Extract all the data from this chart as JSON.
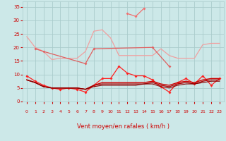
{
  "x": [
    0,
    1,
    2,
    3,
    4,
    5,
    6,
    7,
    8,
    9,
    10,
    11,
    12,
    13,
    14,
    15,
    16,
    17,
    18,
    19,
    20,
    21,
    22,
    23
  ],
  "series": [
    {
      "y": [
        24,
        20,
        18.5,
        15.5,
        16,
        16,
        16,
        18.5,
        26,
        26.5,
        23.5,
        17,
        17,
        17,
        17,
        17,
        19.5,
        17,
        16,
        16,
        16,
        21,
        21.5,
        21.5
      ],
      "color": "#f0a0a0",
      "lw": 0.9,
      "marker": null
    },
    {
      "y": [
        null,
        null,
        null,
        null,
        null,
        null,
        null,
        null,
        null,
        null,
        null,
        null,
        32.5,
        31.5,
        34.5,
        null,
        null,
        null,
        null,
        null,
        null,
        null,
        null,
        null
      ],
      "color": "#f07070",
      "lw": 0.9,
      "marker": "D"
    },
    {
      "y": [
        null,
        19.5,
        18.5,
        null,
        null,
        null,
        null,
        14,
        19.5,
        null,
        null,
        null,
        null,
        null,
        null,
        20,
        null,
        13,
        null,
        null,
        null,
        null,
        null,
        null
      ],
      "color": "#e06060",
      "lw": 0.9,
      "marker": "D"
    },
    {
      "y": [
        9.5,
        7.5,
        6,
        5,
        4.5,
        5,
        4.5,
        3.5,
        6,
        8.5,
        8.5,
        13,
        10.5,
        9.5,
        9.5,
        8,
        5.5,
        3.5,
        7,
        8.5,
        6.5,
        9.5,
        6,
        8.5
      ],
      "color": "#ff2020",
      "lw": 0.9,
      "marker": "D"
    },
    {
      "y": [
        8,
        7,
        5.5,
        5,
        5,
        5,
        5,
        4.5,
        6,
        7,
        7,
        7,
        7,
        7,
        7,
        7.5,
        6.5,
        6,
        7,
        7.5,
        7,
        8,
        8.5,
        8.5
      ],
      "color": "#cc0000",
      "lw": 1.0,
      "marker": null
    },
    {
      "y": [
        8,
        7,
        5.5,
        5,
        5,
        5,
        5,
        4.5,
        6,
        6.5,
        6.5,
        6.5,
        6.5,
        6.5,
        6.5,
        7,
        6,
        5.5,
        6.5,
        7,
        6.5,
        7.5,
        8,
        8
      ],
      "color": "#aa0000",
      "lw": 0.9,
      "marker": null
    },
    {
      "y": [
        8,
        7,
        5.5,
        5,
        5,
        5,
        5,
        4.5,
        5.5,
        6,
        6,
        6,
        6,
        6,
        6.5,
        6.5,
        5.5,
        5,
        6,
        6.5,
        6.5,
        7,
        7.5,
        7.5
      ],
      "color": "#880000",
      "lw": 0.8,
      "marker": null
    }
  ],
  "wind_symbols": [
    "→",
    "↑",
    "↑",
    "↗",
    "↗",
    "↑",
    "→",
    "→",
    "↗",
    "→",
    "↙",
    "→",
    "↗",
    "→",
    "→",
    "↑",
    "↑",
    "↖",
    "↖",
    "↖",
    "→",
    "↑",
    "↖",
    "↑"
  ],
  "xlabel": "Vent moyen/en rafales ( km/h )",
  "xlim": [
    -0.5,
    23.5
  ],
  "ylim": [
    0,
    37
  ],
  "yticks": [
    0,
    5,
    10,
    15,
    20,
    25,
    30,
    35
  ],
  "xticks": [
    0,
    1,
    2,
    3,
    4,
    5,
    6,
    7,
    8,
    9,
    10,
    11,
    12,
    13,
    14,
    15,
    16,
    17,
    18,
    19,
    20,
    21,
    22,
    23
  ],
  "bg_color": "#cce8e8",
  "grid_color": "#aacccc",
  "tick_color": "#cc0000",
  "label_color": "#cc0000"
}
